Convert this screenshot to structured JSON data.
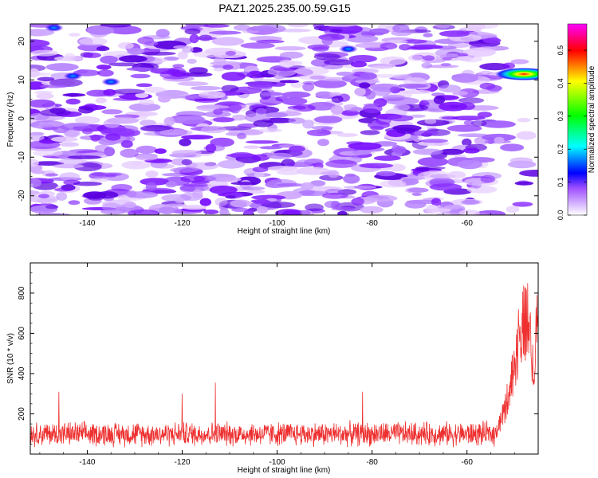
{
  "title": "PAZ1.2025.235.00.59.G15",
  "chart_data": [
    {
      "type": "heatmap",
      "xlabel": "Height of straight line (km)",
      "ylabel": "Frequency (Hz)",
      "xlim": [
        -152,
        -45
      ],
      "ylim": [
        -25,
        24.5
      ],
      "xticks": [
        -140,
        -120,
        -100,
        -80,
        -60
      ],
      "yticks": [
        -20,
        -10,
        0,
        10,
        20
      ],
      "colorbar": {
        "label": "Normalized spectral amplitude",
        "range": [
          0.0,
          0.58
        ],
        "ticks": [
          0.0,
          0.1,
          0.2,
          0.3,
          0.4,
          0.5
        ],
        "colormap": [
          "#ffffff",
          "#8800ff",
          "#0000ff",
          "#00ffff",
          "#00ff00",
          "#ffff00",
          "#ff0000",
          "#ff00ff"
        ]
      },
      "blank_region_x": [
        -53,
        -45
      ],
      "hotspots": [
        {
          "x": -48,
          "y": 11.5,
          "value": 0.58
        },
        {
          "x": -143,
          "y": 11,
          "value": 0.12
        },
        {
          "x": -135,
          "y": 9.5,
          "value": 0.1
        },
        {
          "x": -147,
          "y": 23.5,
          "value": 0.1
        },
        {
          "x": -85,
          "y": 18,
          "value": 0.09
        }
      ]
    },
    {
      "type": "line",
      "xlabel": "Height of straight line (km)",
      "ylabel": "SNR (10 * v/v)",
      "xlim": [
        -152,
        -45
      ],
      "ylim": [
        0,
        950
      ],
      "xticks": [
        -140,
        -120,
        -100,
        -80,
        -60
      ],
      "yticks": [
        200,
        400,
        600,
        800
      ],
      "series": [
        {
          "color": "#ee3030",
          "baseline": 100,
          "noise_amplitude": 70,
          "spikes": [
            {
              "x": -146,
              "y": 310
            },
            {
              "x": -120,
              "y": 300
            },
            {
              "x": -113,
              "y": 355
            },
            {
              "x": -82,
              "y": 310
            }
          ],
          "ramp": [
            {
              "x": -54,
              "y": 120
            },
            {
              "x": -52,
              "y": 280
            },
            {
              "x": -50,
              "y": 550
            },
            {
              "x": -48.5,
              "y": 800
            },
            {
              "x": -47,
              "y": 820
            },
            {
              "x": -46,
              "y": 500
            },
            {
              "x": -45,
              "y": 940
            }
          ]
        }
      ]
    }
  ]
}
